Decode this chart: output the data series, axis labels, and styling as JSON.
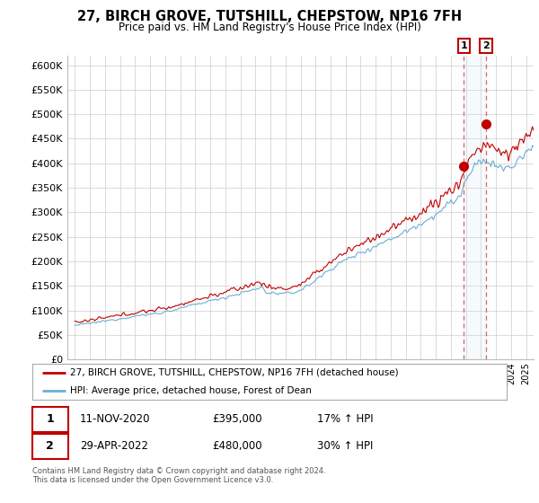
{
  "title": "27, BIRCH GROVE, TUTSHILL, CHEPSTOW, NP16 7FH",
  "subtitle": "Price paid vs. HM Land Registry's House Price Index (HPI)",
  "ylim": [
    0,
    620000
  ],
  "hpi_color": "#6aaed6",
  "price_color": "#c00000",
  "background_color": "#ffffff",
  "grid_color": "#cccccc",
  "annotation_bg": "#ddeeff",
  "legend_label_red": "27, BIRCH GROVE, TUTSHILL, CHEPSTOW, NP16 7FH (detached house)",
  "legend_label_blue": "HPI: Average price, detached house, Forest of Dean",
  "sale1_date": "11-NOV-2020",
  "sale1_price": "£395,000",
  "sale1_hpi": "17% ↑ HPI",
  "sale2_date": "29-APR-2022",
  "sale2_price": "£480,000",
  "sale2_hpi": "30% ↑ HPI",
  "footer": "Contains HM Land Registry data © Crown copyright and database right 2024.\nThis data is licensed under the Open Government Licence v3.0.",
  "sale1_x": 2020.87,
  "sale1_y": 395000,
  "sale2_x": 2022.33,
  "sale2_y": 480000,
  "xmin": 1994.5,
  "xmax": 2025.5
}
